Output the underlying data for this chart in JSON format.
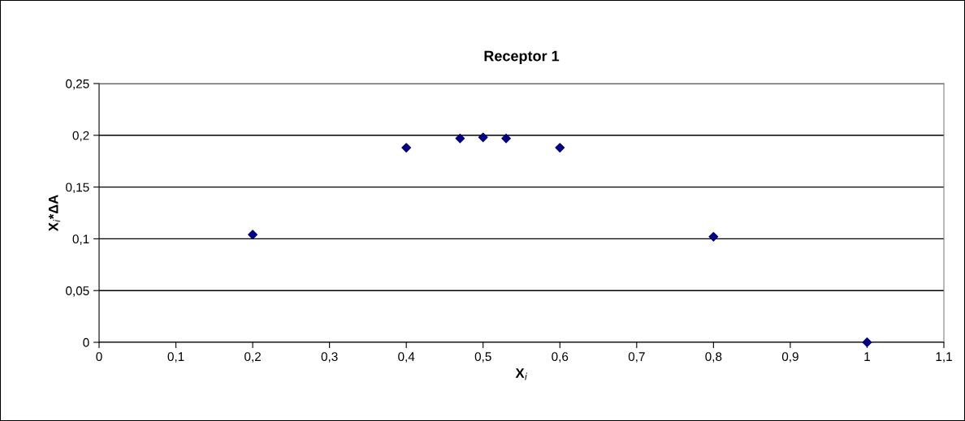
{
  "chart_data": {
    "type": "scatter",
    "title": "Receptor 1",
    "xlabel": "X$_{i}$",
    "ylabel": "X$_{i}$*ΔA",
    "x": [
      0.2,
      0.4,
      0.47,
      0.5,
      0.53,
      0.6,
      0.8,
      1.0
    ],
    "series": [
      {
        "color": "#000080",
        "values": [
          0.104,
          0.188,
          0.197,
          0.198,
          0.197,
          0.188,
          0.102,
          0
        ]
      }
    ],
    "marker": "diamond",
    "grid": "y",
    "xlim": [
      0,
      1.1
    ],
    "ylim": [
      0,
      0.25
    ],
    "xticks": [
      0,
      {
        "value": 0.1,
        "label": "0,1"
      },
      {
        "value": 0.2,
        "label": "0,2"
      },
      {
        "value": 0.3,
        "label": "0,3"
      },
      {
        "value": 0.4,
        "label": "0,4"
      },
      {
        "value": 0.5,
        "label": "0,5"
      },
      {
        "value": 0.6,
        "label": "0,6"
      },
      {
        "value": 0.7,
        "label": "0,7"
      },
      {
        "value": 0.8,
        "label": "0,8"
      },
      {
        "value": 0.9,
        "label": "0,9"
      },
      1,
      {
        "value": 1.1,
        "label": "1,1"
      }
    ],
    "yticks": [
      0,
      {
        "value": 0.05,
        "label": "0,05"
      },
      {
        "value": 0.1,
        "label": "0,1"
      },
      {
        "value": 0.15,
        "label": "0,15"
      },
      {
        "value": 0.2,
        "label": "0,2"
      },
      {
        "value": 0.25,
        "label": "0,25"
      }
    ]
  }
}
